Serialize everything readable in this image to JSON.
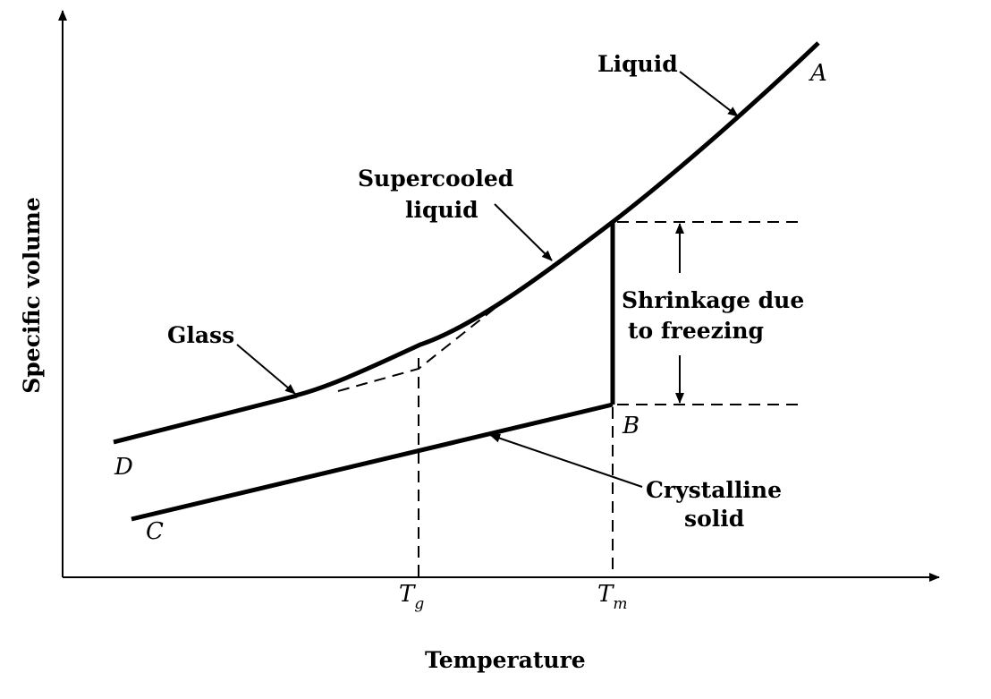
{
  "axes": {
    "xlabel": "Temperature",
    "ylabel": "Specific volume"
  },
  "ticks": {
    "tg_main": "T",
    "tg_sub": "g",
    "tm_main": "T",
    "tm_sub": "m"
  },
  "labels": {
    "liquid": "Liquid",
    "supercooled_1": "Supercooled",
    "supercooled_2": "liquid",
    "glass": "Glass",
    "shrinkage_1": "Shrinkage due",
    "shrinkage_2": "to freezing",
    "crystalline_1": "Crystalline",
    "crystalline_2": "solid"
  },
  "points": {
    "a": "A",
    "b": "B",
    "c": "C",
    "d": "D"
  }
}
